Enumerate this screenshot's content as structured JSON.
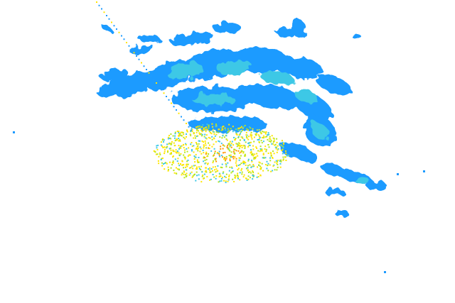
{
  "radar": {
    "background": "#ffffff",
    "colors": {
      "light": "#1e9bff",
      "medium": "#3cc8e6",
      "moderate": "#b4e61e",
      "strong": "#ffe600",
      "heavy": "#ff9600"
    }
  }
}
